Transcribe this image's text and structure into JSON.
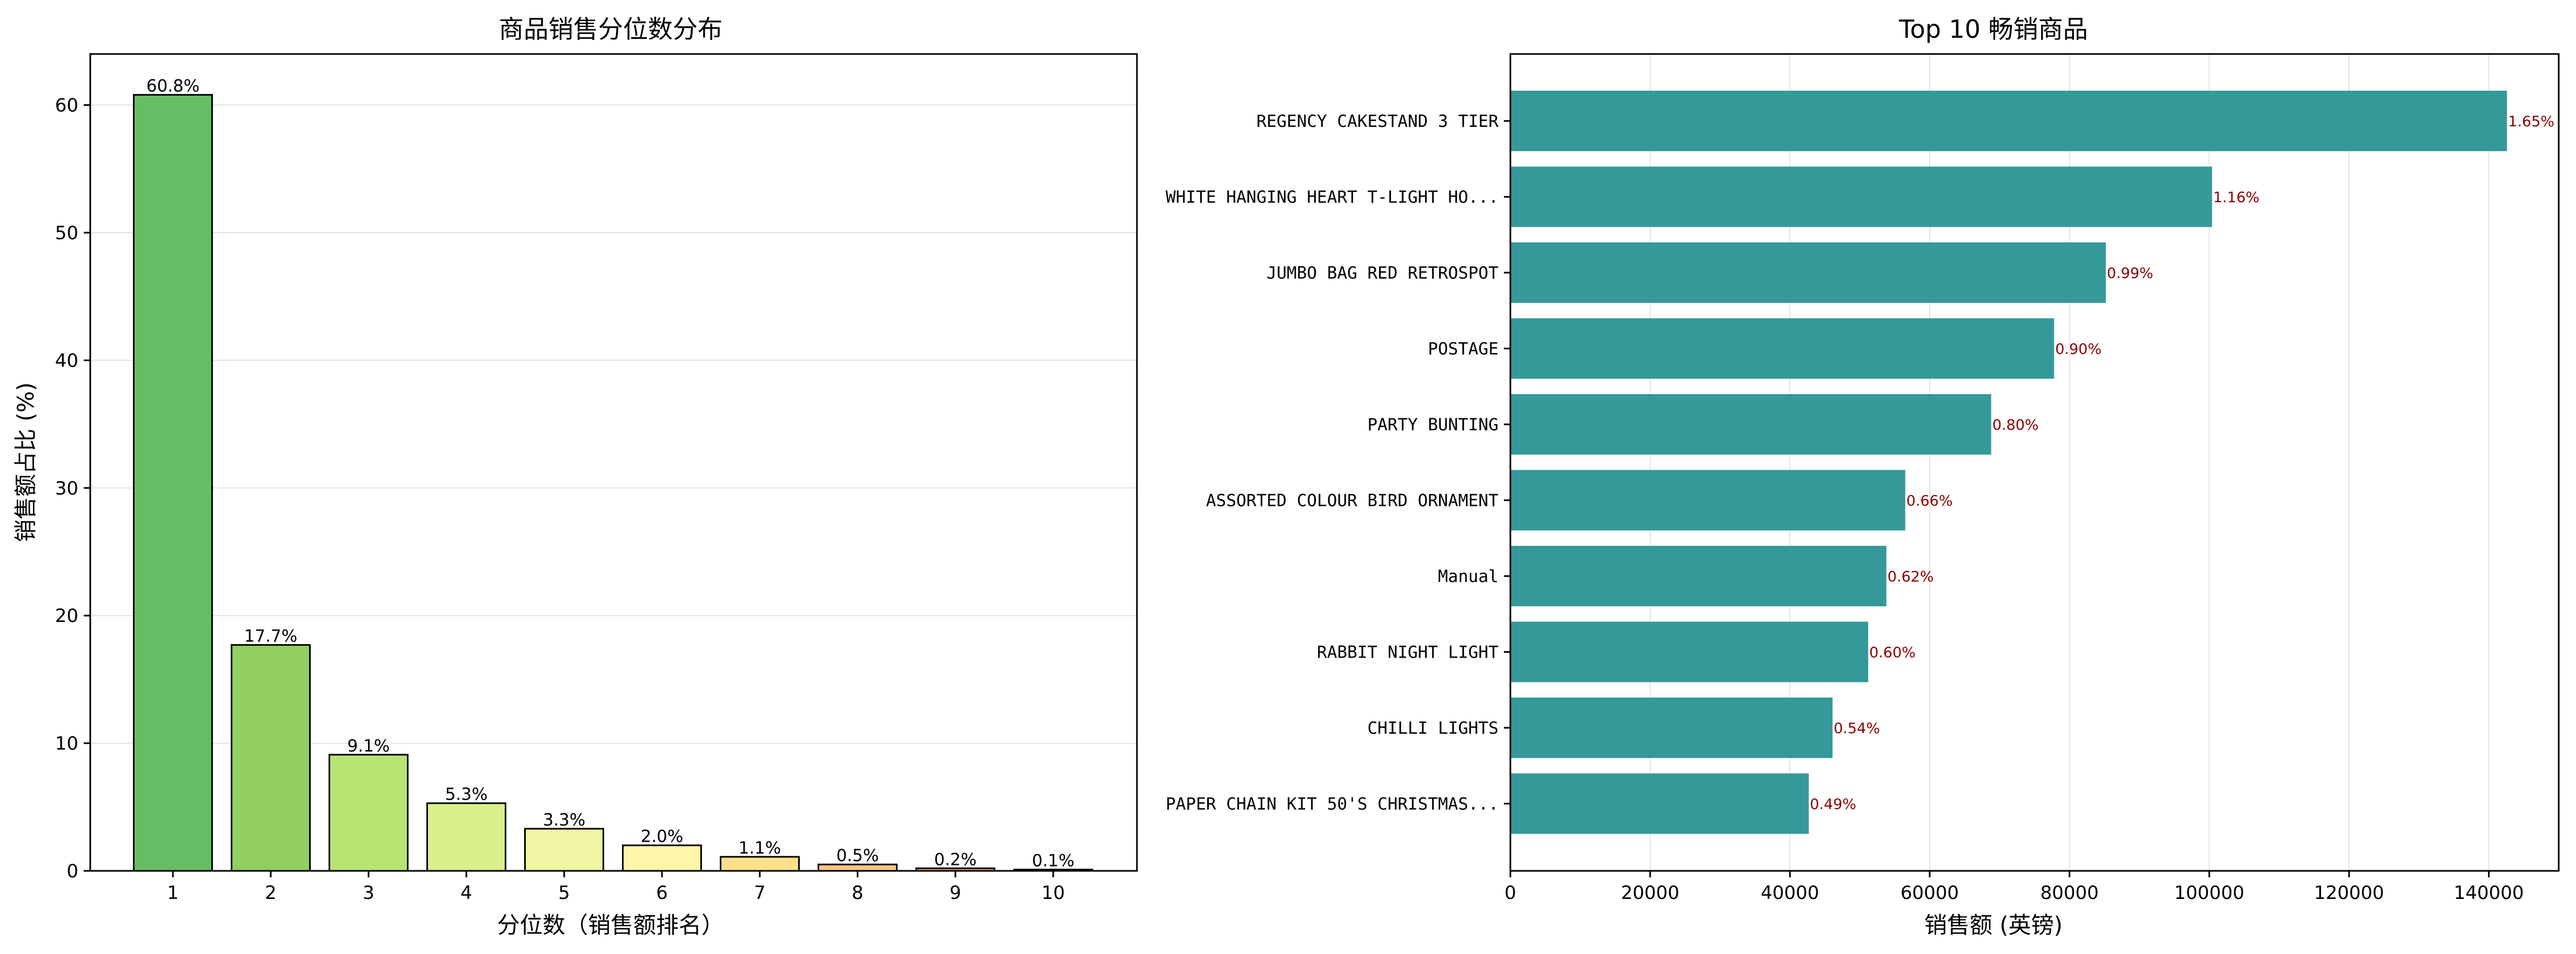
{
  "chart_data": [
    {
      "type": "bar",
      "title": "商品销售分位数分布",
      "xlabel": "分位数（销售额排名）",
      "ylabel": "销售额占比 (%)",
      "categories": [
        "1",
        "2",
        "3",
        "4",
        "5",
        "6",
        "7",
        "8",
        "9",
        "10"
      ],
      "values": [
        60.8,
        17.7,
        9.1,
        5.3,
        3.3,
        2.0,
        1.1,
        0.5,
        0.2,
        0.1
      ],
      "data_labels": [
        "60.8%",
        "17.7%",
        "9.1%",
        "5.3%",
        "3.3%",
        "2.0%",
        "1.1%",
        "0.5%",
        "0.2%",
        "0.1%"
      ],
      "colors": [
        "#66bd63",
        "#91cf60",
        "#b8e373",
        "#d9ef8b",
        "#f0f5a3",
        "#fff5a8",
        "#fee08b",
        "#fdc87c",
        "#fcae61",
        "#f98e52"
      ],
      "ylim": [
        0,
        64
      ],
      "yticks": [
        0,
        10,
        20,
        30,
        40,
        50,
        60
      ],
      "grid": "y"
    },
    {
      "type": "bar",
      "orientation": "horizontal",
      "title": "Top 10 畅销商品",
      "xlabel": "销售额 (英镑)",
      "ylabel": "",
      "categories": [
        "REGENCY CAKESTAND 3 TIER",
        "WHITE HANGING HEART T-LIGHT HO...",
        "JUMBO BAG RED RETROSPOT",
        "POSTAGE",
        "PARTY BUNTING",
        "ASSORTED COLOUR BIRD ORNAMENT",
        "Manual",
        "RABBIT NIGHT LIGHT",
        "CHILLI LIGHTS",
        "PAPER CHAIN KIT 50'S CHRISTMAS..."
      ],
      "values": [
        142600,
        100400,
        85200,
        77800,
        68800,
        56500,
        53800,
        51200,
        46100,
        42700
      ],
      "data_labels": [
        "1.65%",
        "1.16%",
        "0.99%",
        "0.90%",
        "0.80%",
        "0.66%",
        "0.62%",
        "0.60%",
        "0.54%",
        "0.49%"
      ],
      "color": "#35999a",
      "label_color": "#8b0000",
      "xlim": [
        0,
        150000
      ],
      "xticks": [
        0,
        20000,
        40000,
        60000,
        80000,
        100000,
        120000,
        140000
      ],
      "grid": "x"
    }
  ]
}
